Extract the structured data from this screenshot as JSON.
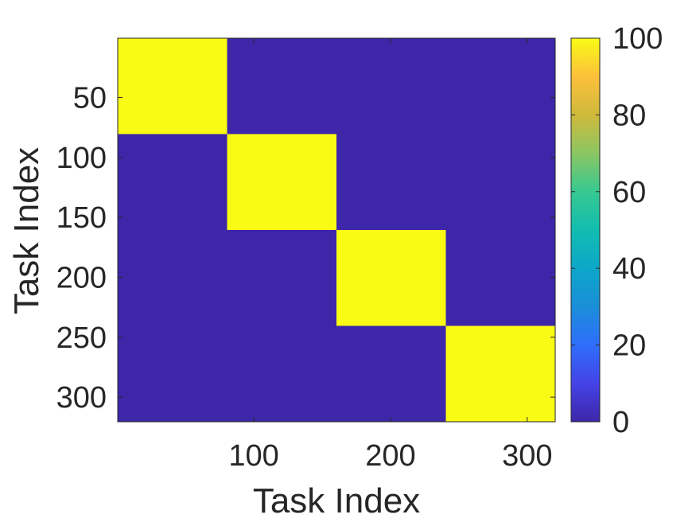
{
  "chart_data": {
    "type": "heatmap",
    "title": "",
    "xlabel": "Task Index",
    "ylabel": "Task Index",
    "x_range": [
      1,
      320
    ],
    "y_range": [
      1,
      320
    ],
    "x_ticks": [
      100,
      200,
      300
    ],
    "y_ticks": [
      50,
      100,
      150,
      200,
      250,
      300
    ],
    "y_axis_direction": "reversed",
    "grid": false,
    "colormap": "parula",
    "colorbar": {
      "range": [
        0,
        100
      ],
      "ticks": [
        0,
        20,
        40,
        60,
        80,
        100
      ],
      "placement": "right"
    },
    "background_value": 0,
    "blocks": [
      {
        "rows": [
          1,
          80
        ],
        "cols": [
          1,
          80
        ],
        "value": 100
      },
      {
        "rows": [
          81,
          160
        ],
        "cols": [
          81,
          160
        ],
        "value": 100
      },
      {
        "rows": [
          161,
          240
        ],
        "cols": [
          161,
          240
        ],
        "value": 100
      },
      {
        "rows": [
          241,
          320
        ],
        "cols": [
          241,
          320
        ],
        "value": 100
      }
    ],
    "colors": {
      "low": "#3e26a8",
      "high": "#f9fb15",
      "axis": "#262626"
    }
  }
}
